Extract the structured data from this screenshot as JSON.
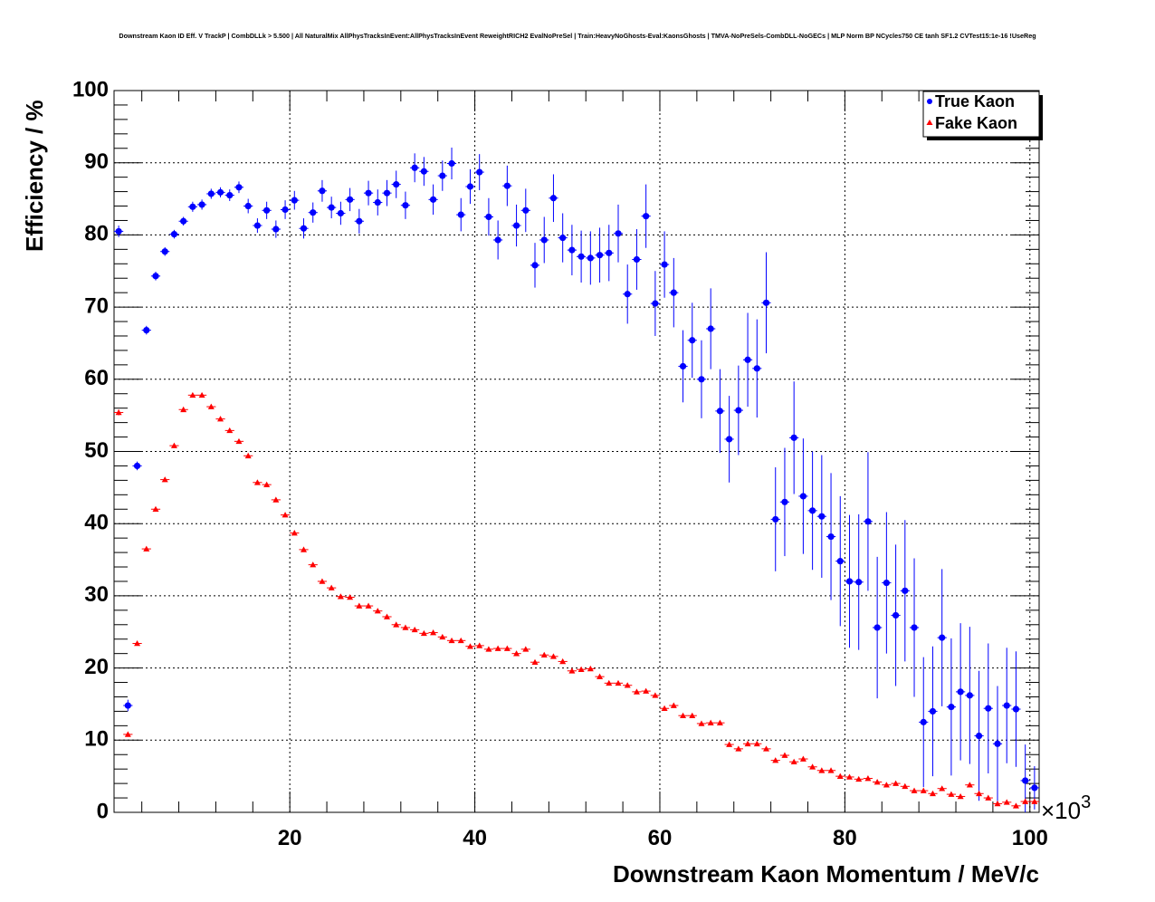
{
  "chart_data": {
    "type": "scatter",
    "title": "Downstream Kaon ID Eff. V TrackP | CombDLLk > 5.500 | All NaturalMix AllPhysTracksInEvent:AllPhysTracksInEvent ReweightRICH2 EvalNoPreSel | Train:HeavyNoGhosts-Eval:KaonsGhosts | TMVA-NoPreSels-CombDLL-NoGECs | MLP Norm BP NCycles750 CE tanh SF1.2 CVTest15:1e-16 !UseReg",
    "xlabel": "Downstream Kaon Momentum / MeV/c",
    "ylabel": "Efficiency / %",
    "x_multiplier": "×10",
    "x_multiplier_exp": "3",
    "xlim": [
      1,
      101
    ],
    "ylim": [
      0,
      100
    ],
    "x_ticks": [
      20,
      40,
      60,
      80,
      100
    ],
    "y_ticks": [
      0,
      10,
      20,
      30,
      40,
      50,
      60,
      70,
      80,
      90,
      100
    ],
    "grid": true,
    "legend_position": "top-right",
    "series": [
      {
        "name": "True Kaon",
        "color": "#0000ff",
        "marker": "circle",
        "x": [
          1.5,
          2.5,
          3.5,
          4.5,
          5.5,
          6.5,
          7.5,
          8.5,
          9.5,
          10.5,
          11.5,
          12.5,
          13.5,
          14.5,
          15.5,
          16.5,
          17.5,
          18.5,
          19.5,
          20.5,
          21.5,
          22.5,
          23.5,
          24.5,
          25.5,
          26.5,
          27.5,
          28.5,
          29.5,
          30.5,
          31.5,
          32.5,
          33.5,
          34.5,
          35.5,
          36.5,
          37.5,
          38.5,
          39.5,
          40.5,
          41.5,
          42.5,
          43.5,
          44.5,
          45.5,
          46.5,
          47.5,
          48.5,
          49.5,
          50.5,
          51.5,
          52.5,
          53.5,
          54.5,
          55.5,
          56.5,
          57.5,
          58.5,
          59.5,
          60.5,
          61.5,
          62.5,
          63.5,
          64.5,
          65.5,
          66.5,
          67.5,
          68.5,
          69.5,
          70.5,
          71.5,
          72.5,
          73.5,
          74.5,
          75.5,
          76.5,
          77.5,
          78.5,
          79.5,
          80.5,
          81.5,
          82.5,
          83.5,
          84.5,
          85.5,
          86.5,
          87.5,
          88.5,
          89.5,
          90.5,
          91.5,
          92.5,
          93.5,
          94.5,
          95.5,
          96.5,
          97.5,
          98.5,
          99.5,
          100.5
        ],
        "y": [
          80.5,
          14.8,
          48.0,
          66.8,
          74.3,
          77.7,
          80.1,
          81.9,
          83.9,
          84.2,
          85.7,
          85.9,
          85.5,
          86.6,
          84.0,
          81.3,
          83.4,
          80.8,
          83.5,
          84.8,
          80.9,
          83.1,
          86.1,
          83.8,
          83.0,
          84.9,
          81.9,
          85.8,
          84.5,
          85.8,
          87.0,
          84.1,
          89.3,
          88.8,
          84.9,
          88.2,
          89.9,
          82.8,
          86.7,
          88.7,
          82.5,
          79.3,
          86.8,
          81.3,
          83.4,
          75.8,
          79.3,
          85.1,
          79.6,
          77.9,
          77.0,
          76.8,
          77.2,
          77.5,
          80.2,
          71.8,
          76.6,
          82.6,
          70.5,
          75.9,
          72.0,
          61.8,
          65.4,
          60.0,
          67.0,
          55.6,
          51.7,
          55.7,
          62.7,
          61.5,
          70.6,
          40.6,
          43.0,
          51.9,
          43.8,
          41.8,
          41.0,
          38.2,
          34.8,
          32.0,
          31.9,
          40.3,
          25.6,
          31.8,
          27.3,
          30.7,
          25.6,
          12.5,
          14.0,
          24.2,
          14.6,
          16.7,
          16.2,
          10.6,
          14.4,
          9.5,
          14.8,
          14.3,
          4.4,
          3.4
        ],
        "yerr": [
          0.8,
          0.8,
          0.6,
          0.6,
          0.6,
          0.6,
          0.6,
          0.6,
          0.7,
          0.7,
          0.7,
          0.7,
          0.8,
          0.8,
          1.0,
          1.0,
          1.2,
          1.2,
          1.3,
          1.3,
          1.4,
          1.4,
          1.5,
          1.5,
          1.6,
          1.6,
          1.7,
          1.7,
          1.8,
          1.8,
          1.9,
          1.9,
          2.0,
          2.0,
          2.1,
          2.1,
          2.2,
          2.3,
          2.4,
          2.5,
          2.6,
          2.7,
          2.8,
          2.9,
          3.0,
          3.1,
          3.2,
          3.3,
          3.4,
          3.5,
          3.6,
          3.7,
          3.8,
          3.9,
          4.0,
          4.1,
          4.2,
          4.4,
          4.5,
          4.6,
          4.8,
          5.0,
          5.2,
          5.4,
          5.6,
          5.8,
          6.0,
          6.2,
          6.5,
          6.8,
          7.0,
          7.2,
          7.5,
          7.8,
          8.0,
          8.2,
          8.5,
          8.8,
          9.0,
          9.2,
          9.4,
          9.6,
          9.8,
          9.8,
          9.8,
          9.8,
          9.6,
          9.0,
          9.0,
          9.5,
          9.5,
          9.5,
          9.5,
          9.0,
          9.0,
          8.0,
          8.0,
          8.0,
          5.0,
          3.0
        ]
      },
      {
        "name": "Fake Kaon",
        "color": "#ff0000",
        "marker": "triangle",
        "x": [
          1.5,
          2.5,
          3.5,
          4.5,
          5.5,
          6.5,
          7.5,
          8.5,
          9.5,
          10.5,
          11.5,
          12.5,
          13.5,
          14.5,
          15.5,
          16.5,
          17.5,
          18.5,
          19.5,
          20.5,
          21.5,
          22.5,
          23.5,
          24.5,
          25.5,
          26.5,
          27.5,
          28.5,
          29.5,
          30.5,
          31.5,
          32.5,
          33.5,
          34.5,
          35.5,
          36.5,
          37.5,
          38.5,
          39.5,
          40.5,
          41.5,
          42.5,
          43.5,
          44.5,
          45.5,
          46.5,
          47.5,
          48.5,
          49.5,
          50.5,
          51.5,
          52.5,
          53.5,
          54.5,
          55.5,
          56.5,
          57.5,
          58.5,
          59.5,
          60.5,
          61.5,
          62.5,
          63.5,
          64.5,
          65.5,
          66.5,
          67.5,
          68.5,
          69.5,
          70.5,
          71.5,
          72.5,
          73.5,
          74.5,
          75.5,
          76.5,
          77.5,
          78.5,
          79.5,
          80.5,
          81.5,
          82.5,
          83.5,
          84.5,
          85.5,
          86.5,
          87.5,
          88.5,
          89.5,
          90.5,
          91.5,
          92.5,
          93.5,
          94.5,
          95.5,
          96.5,
          97.5,
          98.5,
          99.5,
          100.5
        ],
        "y": [
          55.4,
          10.8,
          23.4,
          36.5,
          42.0,
          46.1,
          50.8,
          55.8,
          57.8,
          57.8,
          56.2,
          54.5,
          52.9,
          51.4,
          49.4,
          45.7,
          45.4,
          43.3,
          41.2,
          38.7,
          36.4,
          34.3,
          32.0,
          31.1,
          29.9,
          29.8,
          28.6,
          28.6,
          27.9,
          27.1,
          26.0,
          25.6,
          25.3,
          24.8,
          24.9,
          24.3,
          23.8,
          23.8,
          23.0,
          23.1,
          22.6,
          22.7,
          22.7,
          22.0,
          22.6,
          20.8,
          21.8,
          21.6,
          20.9,
          19.6,
          19.8,
          19.9,
          18.8,
          17.9,
          17.9,
          17.6,
          16.7,
          16.8,
          16.2,
          14.4,
          14.8,
          13.4,
          13.4,
          12.3,
          12.4,
          12.4,
          9.4,
          8.8,
          9.5,
          9.5,
          8.8,
          7.2,
          7.9,
          7.0,
          7.4,
          6.3,
          5.8,
          5.8,
          5.0,
          4.9,
          4.6,
          4.7,
          4.2,
          3.8,
          4.0,
          3.6,
          3.0,
          3.0,
          2.6,
          3.3,
          2.5,
          2.2,
          3.8,
          2.6,
          2.0,
          1.2,
          1.4,
          0.9,
          1.5,
          1.5
        ],
        "yerr": [
          0.4,
          0.2,
          0.3,
          0.3,
          0.3,
          0.3,
          0.3,
          0.3,
          0.3,
          0.3,
          0.3,
          0.3,
          0.3,
          0.3,
          0.3,
          0.3,
          0.3,
          0.3,
          0.3,
          0.3,
          0.3,
          0.3,
          0.3,
          0.3,
          0.3,
          0.3,
          0.3,
          0.3,
          0.3,
          0.3,
          0.3,
          0.3,
          0.3,
          0.3,
          0.3,
          0.3,
          0.3,
          0.3,
          0.3,
          0.3,
          0.3,
          0.3,
          0.3,
          0.3,
          0.3,
          0.3,
          0.3,
          0.3,
          0.3,
          0.3,
          0.3,
          0.3,
          0.3,
          0.3,
          0.3,
          0.3,
          0.3,
          0.3,
          0.3,
          0.3,
          0.3,
          0.3,
          0.3,
          0.3,
          0.3,
          0.3,
          0.3,
          0.3,
          0.3,
          0.3,
          0.3,
          0.3,
          0.3,
          0.3,
          0.3,
          0.3,
          0.3,
          0.3,
          0.3,
          0.3,
          0.3,
          0.3,
          0.3,
          0.3,
          0.3,
          0.3,
          0.3,
          0.3,
          0.3,
          0.3,
          0.3,
          0.3,
          0.3,
          0.3,
          0.3,
          0.3,
          0.3,
          0.3,
          0.3,
          0.3
        ]
      }
    ]
  }
}
